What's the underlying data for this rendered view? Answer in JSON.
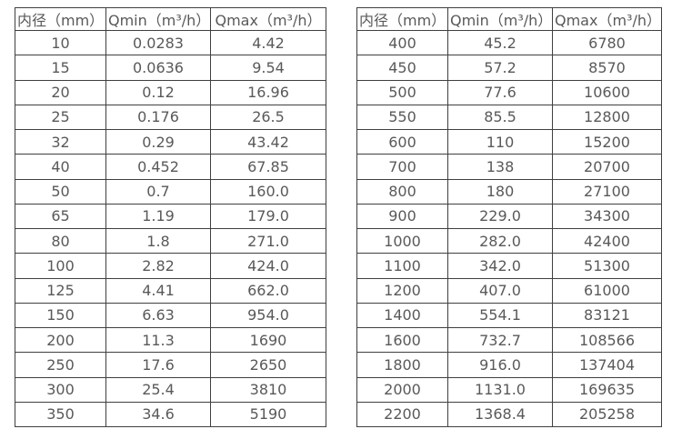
{
  "page": {
    "background_color": "#ffffff",
    "text_color": "#595959",
    "border_color": "#3f3f3f"
  },
  "tables": [
    {
      "name": "flow-rate-table-small-diameters",
      "headers": [
        "内径（mm）",
        "Qmin（m³/h）",
        "Qmax（m³/h）"
      ],
      "rows": [
        [
          "10",
          "0.0283",
          "4.42"
        ],
        [
          "15",
          "0.0636",
          "9.54"
        ],
        [
          "20",
          "0.12",
          "16.96"
        ],
        [
          "25",
          "0.176",
          "26.5"
        ],
        [
          "32",
          "0.29",
          "43.42"
        ],
        [
          "40",
          "0.452",
          "67.85"
        ],
        [
          "50",
          "0.7",
          "160.0"
        ],
        [
          "65",
          "1.19",
          "179.0"
        ],
        [
          "80",
          "1.8",
          "271.0"
        ],
        [
          "100",
          "2.82",
          "424.0"
        ],
        [
          "125",
          "4.41",
          "662.0"
        ],
        [
          "150",
          "6.63",
          "954.0"
        ],
        [
          "200",
          "11.3",
          "1690"
        ],
        [
          "250",
          "17.6",
          "2650"
        ],
        [
          "300",
          "25.4",
          "3810"
        ],
        [
          "350",
          "34.6",
          "5190"
        ]
      ]
    },
    {
      "name": "flow-rate-table-large-diameters",
      "headers": [
        "内径（mm）",
        "Qmin（m³/h）",
        "Qmax（m³/h）"
      ],
      "rows": [
        [
          "400",
          "45.2",
          "6780"
        ],
        [
          "450",
          "57.2",
          "8570"
        ],
        [
          "500",
          "77.6",
          "10600"
        ],
        [
          "550",
          "85.5",
          "12800"
        ],
        [
          "600",
          "110",
          "15200"
        ],
        [
          "700",
          "138",
          "20700"
        ],
        [
          "800",
          "180",
          "27100"
        ],
        [
          "900",
          "229.0",
          "34300"
        ],
        [
          "1000",
          "282.0",
          "42400"
        ],
        [
          "1100",
          "342.0",
          "51300"
        ],
        [
          "1200",
          "407.0",
          "61000"
        ],
        [
          "1400",
          "554.1",
          "83121"
        ],
        [
          "1600",
          "732.7",
          "108566"
        ],
        [
          "1800",
          "916.0",
          "137404"
        ],
        [
          "2000",
          "1131.0",
          "169635"
        ],
        [
          "2200",
          "1368.4",
          "205258"
        ]
      ]
    }
  ]
}
